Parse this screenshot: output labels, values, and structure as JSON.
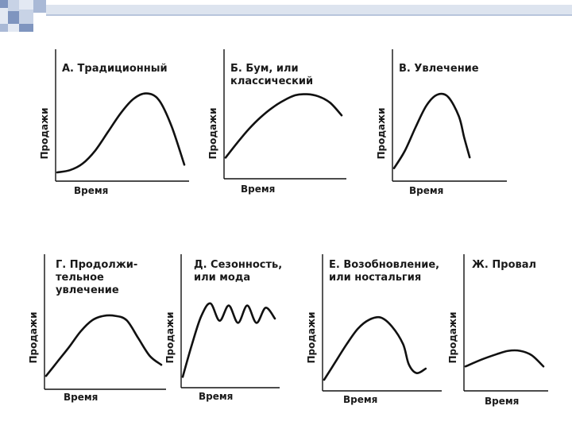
{
  "header": {
    "accent_colors": [
      "#a9b9d6",
      "#7f95bf",
      "#c8d3e6",
      "#e3e9f3"
    ]
  },
  "chart_data": [
    {
      "type": "line",
      "title": [
        "А. Традиционный"
      ],
      "xlabel": "Время",
      "ylabel": "Продажи",
      "series": [
        {
          "values": [
            [
              0,
              0.08
            ],
            [
              0.1,
              0.1
            ],
            [
              0.2,
              0.16
            ],
            [
              0.3,
              0.28
            ],
            [
              0.4,
              0.45
            ],
            [
              0.5,
              0.62
            ],
            [
              0.6,
              0.75
            ],
            [
              0.7,
              0.8
            ],
            [
              0.8,
              0.74
            ],
            [
              0.9,
              0.5
            ],
            [
              1,
              0.15
            ]
          ]
        }
      ]
    },
    {
      "type": "line",
      "title": [
        "Б. Бум, или",
        "классический"
      ],
      "xlabel": "Время",
      "ylabel": "Продажи",
      "series": [
        {
          "values": [
            [
              0,
              0.2
            ],
            [
              0.1,
              0.34
            ],
            [
              0.2,
              0.47
            ],
            [
              0.3,
              0.58
            ],
            [
              0.4,
              0.67
            ],
            [
              0.5,
              0.74
            ],
            [
              0.6,
              0.79
            ],
            [
              0.7,
              0.8
            ],
            [
              0.8,
              0.78
            ],
            [
              0.9,
              0.72
            ],
            [
              1,
              0.6
            ]
          ]
        }
      ]
    },
    {
      "type": "line",
      "title": [
        "В. Увлечение"
      ],
      "xlabel": "Время",
      "ylabel": "Продажи",
      "series": [
        {
          "values": [
            [
              0,
              0.12
            ],
            [
              0.1,
              0.28
            ],
            [
              0.2,
              0.5
            ],
            [
              0.3,
              0.7
            ],
            [
              0.4,
              0.8
            ],
            [
              0.5,
              0.78
            ],
            [
              0.6,
              0.6
            ],
            [
              0.65,
              0.4
            ],
            [
              0.7,
              0.22
            ]
          ]
        }
      ]
    },
    {
      "type": "line",
      "title": [
        "Г. Продолжи-",
        "тельное",
        "увлечение"
      ],
      "xlabel": "Время",
      "ylabel": "Продажи",
      "series": [
        {
          "values": [
            [
              0,
              0.12
            ],
            [
              0.1,
              0.25
            ],
            [
              0.2,
              0.38
            ],
            [
              0.3,
              0.52
            ],
            [
              0.4,
              0.62
            ],
            [
              0.5,
              0.66
            ],
            [
              0.6,
              0.66
            ],
            [
              0.7,
              0.62
            ],
            [
              0.8,
              0.46
            ],
            [
              0.9,
              0.3
            ],
            [
              1,
              0.22
            ]
          ]
        }
      ]
    },
    {
      "type": "line",
      "title": [
        "Д. Сезонность,",
        "или мода"
      ],
      "xlabel": "Время",
      "ylabel": "Продажи",
      "series": [
        {
          "values": [
            [
              0,
              0.1
            ],
            [
              0.1,
              0.4
            ],
            [
              0.2,
              0.66
            ],
            [
              0.3,
              0.78
            ],
            [
              0.4,
              0.62
            ],
            [
              0.5,
              0.76
            ],
            [
              0.6,
              0.6
            ],
            [
              0.7,
              0.76
            ],
            [
              0.8,
              0.6
            ],
            [
              0.9,
              0.74
            ],
            [
              1,
              0.64
            ]
          ]
        }
      ]
    },
    {
      "type": "line",
      "title": [
        "Е. Возобновление,",
        "или ностальгия"
      ],
      "xlabel": "Время",
      "ylabel": "Продажи",
      "series": [
        {
          "values": [
            [
              0,
              0.1
            ],
            [
              0.1,
              0.26
            ],
            [
              0.2,
              0.42
            ],
            [
              0.3,
              0.56
            ],
            [
              0.4,
              0.64
            ],
            [
              0.5,
              0.66
            ],
            [
              0.6,
              0.58
            ],
            [
              0.7,
              0.42
            ],
            [
              0.75,
              0.24
            ],
            [
              0.82,
              0.16
            ],
            [
              0.9,
              0.2
            ]
          ]
        }
      ]
    },
    {
      "type": "line",
      "title": [
        "Ж. Провал"
      ],
      "xlabel": "Время",
      "ylabel": "Продажи",
      "series": [
        {
          "values": [
            [
              0,
              0.22
            ],
            [
              0.2,
              0.28
            ],
            [
              0.4,
              0.33
            ],
            [
              0.55,
              0.36
            ],
            [
              0.7,
              0.36
            ],
            [
              0.85,
              0.32
            ],
            [
              1,
              0.22
            ]
          ]
        }
      ]
    }
  ]
}
